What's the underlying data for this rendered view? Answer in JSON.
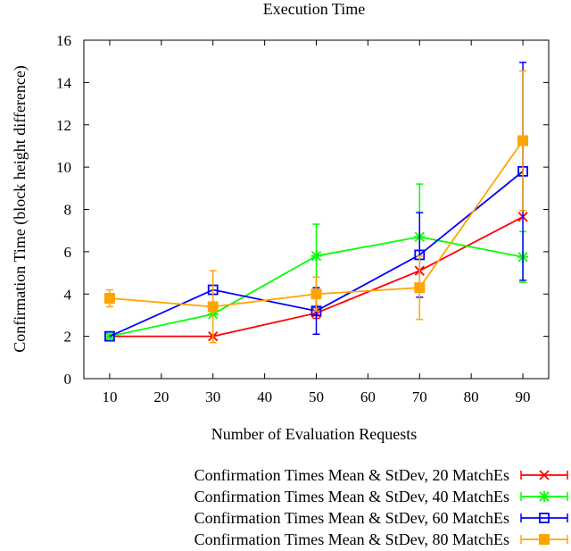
{
  "chart_data": {
    "type": "line",
    "title": "Execution Time",
    "xlabel": "Number of Evaluation Requests",
    "ylabel": "Confirmation Time (block height difference)",
    "xlim": [
      5,
      95
    ],
    "ylim": [
      0,
      16
    ],
    "xticks": [
      10,
      20,
      30,
      40,
      50,
      60,
      70,
      80,
      90
    ],
    "yticks": [
      0,
      2,
      4,
      6,
      8,
      10,
      12,
      14,
      16
    ],
    "grid": false,
    "legend_position": "bottom",
    "series": [
      {
        "name": "Confirmation Times Mean & StDev, 20 MatchEs",
        "color": "#ff0000",
        "marker": "x",
        "x": [
          10,
          30,
          50,
          70,
          90
        ],
        "y": [
          2.0,
          2.0,
          3.1,
          5.1,
          7.65
        ],
        "stdev": [
          0.0,
          0.0,
          0.25,
          0.0,
          0.0
        ]
      },
      {
        "name": "Confirmation Times Mean & StDev, 40 MatchEs",
        "color": "#00ff00",
        "marker": "star",
        "x": [
          10,
          30,
          50,
          70,
          90
        ],
        "y": [
          2.0,
          3.05,
          5.8,
          6.7,
          5.75
        ],
        "stdev": [
          0.0,
          0.0,
          1.5,
          2.5,
          1.2
        ]
      },
      {
        "name": "Confirmation Times Mean & StDev, 60 MatchEs",
        "color": "#0000ff",
        "marker": "square",
        "x": [
          10,
          30,
          50,
          70,
          90
        ],
        "y": [
          2.0,
          4.2,
          3.2,
          5.85,
          9.8
        ],
        "stdev": [
          0.0,
          0.0,
          1.1,
          2.0,
          5.15
        ]
      },
      {
        "name": "Confirmation Times Mean & StDev, 80 MatchEs",
        "color": "#ffa500",
        "marker": "filled-square",
        "x": [
          10,
          30,
          50,
          70,
          90
        ],
        "y": [
          3.8,
          3.4,
          4.0,
          4.3,
          11.25
        ],
        "stdev": [
          0.4,
          1.7,
          0.8,
          1.5,
          3.3
        ]
      }
    ]
  }
}
